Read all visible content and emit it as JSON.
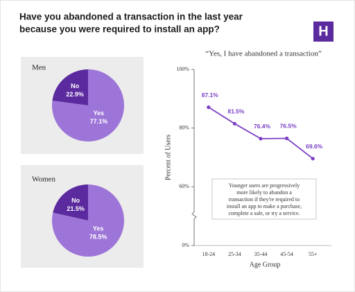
{
  "title": [
    "Have you abandoned a transaction in the last year",
    "because you were required to install an app?"
  ],
  "logo": "H",
  "chart_data": [
    {
      "type": "pie",
      "title": "Men",
      "categories": [
        "No",
        "Yes"
      ],
      "values": [
        22.9,
        77.1
      ],
      "value_labels": [
        "22.9%",
        "77.1%"
      ],
      "colors": [
        "#5b2a9e",
        "#9d75d8"
      ]
    },
    {
      "type": "pie",
      "title": "Women",
      "categories": [
        "No",
        "Yes"
      ],
      "values": [
        21.5,
        78.5
      ],
      "value_labels": [
        "21.5%",
        "78.5%"
      ],
      "colors": [
        "#5b2a9e",
        "#9d75d8"
      ]
    },
    {
      "type": "line",
      "title": "“Yes, I have abandoned a transaction”",
      "categories": [
        "18-24",
        "25-34",
        "35-44",
        "45-54",
        "55+"
      ],
      "values": [
        87.1,
        81.5,
        76.4,
        76.5,
        69.6
      ],
      "value_labels": [
        "87.1%",
        "81.5%",
        "76.4%",
        "76.5%",
        "69.6%"
      ],
      "color": "#7a3fc4",
      "ylim": [
        0,
        100
      ],
      "yticks": [
        {
          "value": 0,
          "label": "0%"
        },
        {
          "value": 60,
          "label": "60%"
        },
        {
          "value": 80,
          "label": "80%"
        },
        {
          "value": 100,
          "label": "100%"
        }
      ],
      "axis_break": true,
      "xlabel": "Age Group",
      "ylabel": "Percent of Users",
      "annotation": [
        "Younger users are progressively",
        "more likely to abandon a",
        "transaction if they're required to",
        "install an app to make a purchase,",
        "complete a sale, or try a service."
      ]
    }
  ]
}
